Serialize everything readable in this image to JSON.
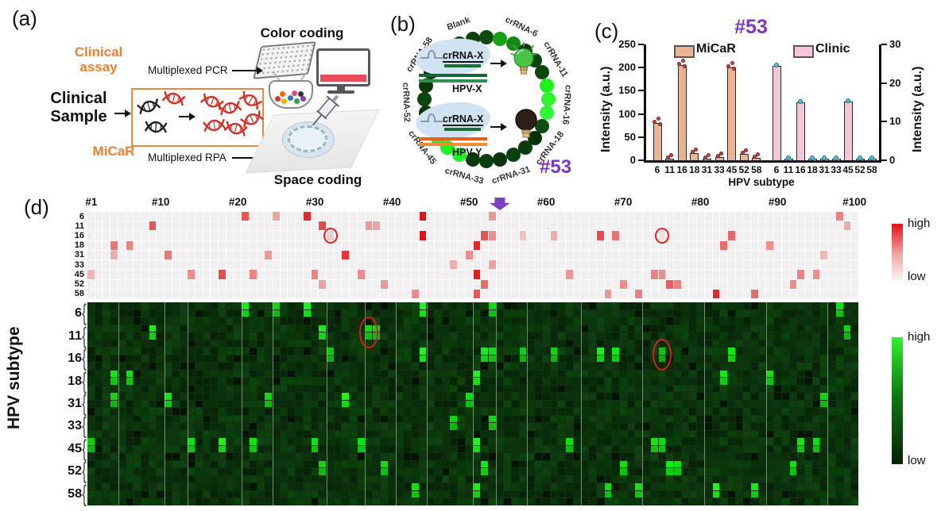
{
  "panel_a": {
    "label": "(a)",
    "clinical_assay_line1": "Clinical",
    "clinical_assay_line2": "assay",
    "multiplexed_pcr": "Multiplexed PCR",
    "color_coding": "Color coding",
    "clinical_sample_line1": "Clinical",
    "clinical_sample_line2": "Sample",
    "micar": "MiCaR",
    "multiplexed_rpa": "Multiplexed RPA",
    "space_coding": "Space coding",
    "accent_orange": "#f07f2d"
  },
  "panel_b": {
    "label": "(b)",
    "sample_id": "#53",
    "sample_id_color": "#7c35c8",
    "ring_labels": [
      "Blank",
      "crRNA-6",
      "crRNA-11",
      "crRNA-16",
      "crRNA-18",
      "crRNA-31",
      "crRNA-33",
      "crRNA-45",
      "crRNA-52",
      "crRNA-58"
    ],
    "well_states": [
      "d",
      "m",
      "m",
      "d",
      "d",
      "d",
      "b",
      "b",
      "b",
      "d",
      "d",
      "d",
      "d",
      "d",
      "d",
      "d",
      "b",
      "b",
      "b",
      "d",
      "d",
      "d",
      "d",
      "d",
      "d",
      "d",
      "d",
      "d"
    ],
    "reaction_on": {
      "crRNA": "crRNA-X",
      "target": "HPV-X",
      "result": "lamp-on"
    },
    "reaction_off": {
      "crRNA": "crRNA-X",
      "target": "HPV-Y",
      "result": "lamp-off"
    }
  },
  "panel_c": {
    "label": "(c)",
    "title": "#53",
    "title_color": "#7c35c8",
    "chart_data": {
      "type": "bar",
      "categories": [
        "6",
        "11",
        "16",
        "18",
        "31",
        "33",
        "45",
        "52",
        "58"
      ],
      "series": [
        {
          "name": "MiCaR",
          "axis": "left",
          "bar_color": "#e9b493",
          "point_color": "#cf4444",
          "values": [
            80,
            4,
            205,
            15,
            4,
            6,
            200,
            13,
            5
          ]
        },
        {
          "name": "Clinic",
          "axis": "right",
          "bar_color": "#f5c6da",
          "point_color": "#40c8e8",
          "values": [
            24.5,
            0.4,
            15,
            0.4,
            0.4,
            0.4,
            15.3,
            0.4,
            0.5
          ]
        }
      ],
      "left_axis": {
        "label": "Intensity (a.u.)",
        "ticks": [
          0,
          50,
          100,
          150,
          200,
          250
        ],
        "max": 250
      },
      "right_axis": {
        "label": "Intensity (a.u.)",
        "ticks": [
          0,
          10,
          20,
          30
        ],
        "max": 30
      },
      "xlabel": "HPV subtype",
      "legend_position": "top",
      "grid": false
    }
  },
  "panel_d": {
    "label": "(d)",
    "ylabel": "HPV subtype",
    "rows": [
      "6",
      "11",
      "16",
      "18",
      "31",
      "33",
      "45",
      "52",
      "58"
    ],
    "n_cols": 100,
    "col_labels": [
      {
        "col": 1,
        "text": "#1"
      },
      {
        "col": 10,
        "text": "#10"
      },
      {
        "col": 20,
        "text": "#20"
      },
      {
        "col": 30,
        "text": "#30"
      },
      {
        "col": 40,
        "text": "#40"
      },
      {
        "col": 50,
        "text": "#50"
      },
      {
        "col": 60,
        "text": "#60"
      },
      {
        "col": 70,
        "text": "#70"
      },
      {
        "col": 80,
        "text": "#80"
      },
      {
        "col": 90,
        "text": "#90"
      },
      {
        "col": 100,
        "text": "#100"
      }
    ],
    "arrow_col": 54,
    "arrow_color": "#7b3fc0",
    "scale_red": {
      "high_label": "high",
      "low_label": "low",
      "color_high": "#e51212",
      "color_low": "#faf6f6"
    },
    "scale_green": {
      "high_label": "high",
      "low_label": "low",
      "color_high": "#2df22d",
      "color_low": "#052105"
    },
    "positives": [
      {
        "row": "6",
        "col": 21,
        "v": 0.7
      },
      {
        "row": "6",
        "col": 25,
        "v": 0.35
      },
      {
        "row": "6",
        "col": 29,
        "v": 0.9
      },
      {
        "row": "6",
        "col": 44,
        "v": 1
      },
      {
        "row": "6",
        "col": 53,
        "v": 0.4
      },
      {
        "row": "6",
        "col": 98,
        "v": 0.5
      },
      {
        "row": "11",
        "col": 9,
        "v": 0.7
      },
      {
        "row": "11",
        "col": 31,
        "v": 0.75
      },
      {
        "row": "11",
        "col": 37,
        "v": 0.4
      },
      {
        "row": "11",
        "col": 38,
        "v": 0.35
      },
      {
        "row": "11",
        "col": 99,
        "v": 0.3
      },
      {
        "row": "16",
        "col": 32,
        "v": 0.15
      },
      {
        "row": "16",
        "col": 44,
        "v": 1
      },
      {
        "row": "16",
        "col": 52,
        "v": 0.7
      },
      {
        "row": "16",
        "col": 53,
        "v": 0.45
      },
      {
        "row": "16",
        "col": 57,
        "v": 0.2
      },
      {
        "row": "16",
        "col": 61,
        "v": 0.3
      },
      {
        "row": "16",
        "col": 67,
        "v": 0.75
      },
      {
        "row": "16",
        "col": 69,
        "v": 0.55
      },
      {
        "row": "16",
        "col": 75,
        "v": 0.07
      },
      {
        "row": "16",
        "col": 84,
        "v": 0.6
      },
      {
        "row": "18",
        "col": 4,
        "v": 0.55
      },
      {
        "row": "18",
        "col": 6,
        "v": 0.5
      },
      {
        "row": "18",
        "col": 51,
        "v": 0.9
      },
      {
        "row": "18",
        "col": 83,
        "v": 0.6
      },
      {
        "row": "18",
        "col": 89,
        "v": 0.45
      },
      {
        "row": "31",
        "col": 4,
        "v": 0.3
      },
      {
        "row": "31",
        "col": 11,
        "v": 0.55
      },
      {
        "row": "31",
        "col": 24,
        "v": 0.4
      },
      {
        "row": "31",
        "col": 34,
        "v": 0.85
      },
      {
        "row": "31",
        "col": 50,
        "v": 0.45
      },
      {
        "row": "31",
        "col": 96,
        "v": 0.25
      },
      {
        "row": "33",
        "col": 48,
        "v": 0.3
      },
      {
        "row": "33",
        "col": 53,
        "v": 0.35
      },
      {
        "row": "45",
        "col": 1,
        "v": 0.25
      },
      {
        "row": "45",
        "col": 14,
        "v": 0.45
      },
      {
        "row": "45",
        "col": 18,
        "v": 0.75
      },
      {
        "row": "45",
        "col": 22,
        "v": 0.5
      },
      {
        "row": "45",
        "col": 30,
        "v": 0.5
      },
      {
        "row": "45",
        "col": 36,
        "v": 0.45
      },
      {
        "row": "45",
        "col": 51,
        "v": 0.95
      },
      {
        "row": "45",
        "col": 63,
        "v": 0.4
      },
      {
        "row": "45",
        "col": 74,
        "v": 0.5
      },
      {
        "row": "45",
        "col": 75,
        "v": 0.45
      },
      {
        "row": "45",
        "col": 93,
        "v": 0.5
      },
      {
        "row": "45",
        "col": 95,
        "v": 0.45
      },
      {
        "row": "52",
        "col": 31,
        "v": 0.35
      },
      {
        "row": "52",
        "col": 39,
        "v": 0.4
      },
      {
        "row": "52",
        "col": 52,
        "v": 0.6
      },
      {
        "row": "52",
        "col": 70,
        "v": 0.45
      },
      {
        "row": "52",
        "col": 76,
        "v": 0.65
      },
      {
        "row": "52",
        "col": 77,
        "v": 0.5
      },
      {
        "row": "52",
        "col": 92,
        "v": 0.45
      },
      {
        "row": "58",
        "col": 43,
        "v": 0.45
      },
      {
        "row": "58",
        "col": 51,
        "v": 0.7
      },
      {
        "row": "58",
        "col": 68,
        "v": 0.4
      },
      {
        "row": "58",
        "col": 72,
        "v": 0.5
      },
      {
        "row": "58",
        "col": 82,
        "v": 0.9
      },
      {
        "row": "58",
        "col": 87,
        "v": 0.6
      }
    ],
    "annotations": {
      "red_circles": [
        {
          "row": "16",
          "col": 32
        },
        {
          "row": "16",
          "col": 75
        }
      ],
      "green_circles": [
        {
          "row": "11",
          "col": 37
        },
        {
          "row": "16",
          "col": 75
        }
      ]
    }
  }
}
